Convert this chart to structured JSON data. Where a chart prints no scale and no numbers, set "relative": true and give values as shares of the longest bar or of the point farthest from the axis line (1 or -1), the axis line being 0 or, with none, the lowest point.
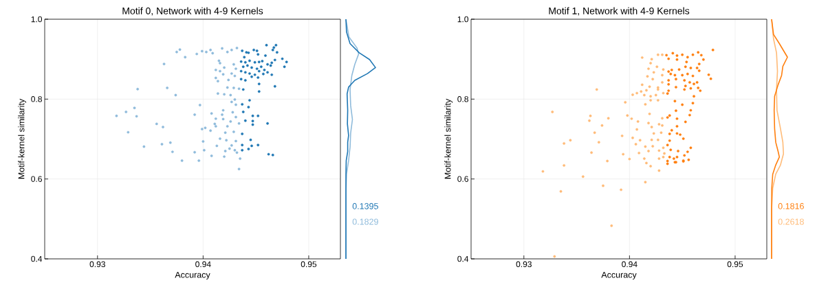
{
  "chart_data": [
    {
      "type": "scatter",
      "title": "Motif 0, Network with 4-9 Kernels",
      "xlabel": "Accuracy",
      "ylabel": "Motif-kernel similarity",
      "xlim": [
        0.925,
        0.953
      ],
      "xticks": [
        0.93,
        0.94,
        0.95
      ],
      "ylim": [
        0.4,
        1.0
      ],
      "yticks": [
        0.4,
        0.6,
        0.8,
        {
          "value": 1.0,
          "label": "1.0"
        }
      ],
      "grid": true,
      "series": [
        {
          "color": "#8fbbdb",
          "x": [
            0.9375,
            0.9378,
            0.9383,
            0.9363,
            0.9394,
            0.9399,
            0.9403,
            0.9407,
            0.9409,
            0.9418,
            0.9423,
            0.9427,
            0.9432,
            0.9415,
            0.9416,
            0.942,
            0.9429,
            0.9431,
            0.9412,
            0.9416,
            0.9419,
            0.9412,
            0.9414,
            0.9424,
            0.9427,
            0.943,
            0.9338,
            0.9366,
            0.9374,
            0.9423,
            0.9429,
            0.9434,
            0.9414,
            0.942,
            0.9426,
            0.943,
            0.9427,
            0.9431,
            0.9397,
            0.9335,
            0.9327,
            0.9318,
            0.9337,
            0.9392,
            0.9408,
            0.9419,
            0.9418,
            0.9428,
            0.9431,
            0.9412,
            0.9419,
            0.9426,
            0.9423,
            0.9434,
            0.9411,
            0.9412,
            0.9356,
            0.9362,
            0.9329,
            0.9399,
            0.9402,
            0.9407,
            0.9421,
            0.9429,
            0.9416,
            0.9422,
            0.9431,
            0.9369,
            0.9361,
            0.9344,
            0.94,
            0.9413,
            0.9427,
            0.9371,
            0.9392,
            0.9401,
            0.9421,
            0.9425,
            0.943,
            0.9432,
            0.9408,
            0.942,
            0.9435,
            0.938,
            0.9396,
            0.9434
          ],
          "values": [
            0.918,
            0.924,
            0.905,
            0.888,
            0.913,
            0.92,
            0.918,
            0.923,
            0.915,
            0.927,
            0.918,
            0.923,
            0.928,
            0.896,
            0.89,
            0.879,
            0.887,
            0.876,
            0.873,
            0.87,
            0.862,
            0.853,
            0.845,
            0.848,
            0.864,
            0.858,
            0.825,
            0.828,
            0.81,
            0.829,
            0.828,
            0.826,
            0.814,
            0.812,
            0.81,
            0.799,
            0.793,
            0.786,
            0.785,
            0.778,
            0.768,
            0.758,
            0.757,
            0.761,
            0.764,
            0.772,
            0.761,
            0.767,
            0.755,
            0.751,
            0.75,
            0.744,
            0.732,
            0.739,
            0.738,
            0.732,
            0.738,
            0.73,
            0.717,
            0.725,
            0.728,
            0.721,
            0.716,
            0.718,
            0.701,
            0.697,
            0.695,
            0.691,
            0.687,
            0.681,
            0.694,
            0.683,
            0.684,
            0.668,
            0.667,
            0.672,
            0.67,
            0.676,
            0.672,
            0.666,
            0.658,
            0.656,
            0.651,
            0.646,
            0.646,
            0.625
          ]
        },
        {
          "color": "#1f77b4",
          "x": [
            0.946,
            0.9469,
            0.9467,
            0.9466,
            0.947,
            0.9437,
            0.9441,
            0.9443,
            0.9448,
            0.9451,
            0.9452,
            0.9459,
            0.9439,
            0.9475,
            0.9479,
            0.9477,
            0.9468,
            0.9465,
            0.9436,
            0.944,
            0.9444,
            0.9449,
            0.9453,
            0.9456,
            0.9461,
            0.9464,
            0.9438,
            0.9442,
            0.9446,
            0.9451,
            0.9455,
            0.9458,
            0.9436,
            0.944,
            0.9444,
            0.9449,
            0.9453,
            0.9457,
            0.9465,
            0.9461,
            0.9436,
            0.944,
            0.9446,
            0.9452,
            0.9453,
            0.9468,
            0.9453,
            0.9438,
            0.9444,
            0.9437,
            0.9443,
            0.9438,
            0.9447,
            0.9452,
            0.944,
            0.9447,
            0.9447,
            0.9461,
            0.9437,
            0.9445,
            0.9437,
            0.9446,
            0.9452,
            0.9437,
            0.9443,
            0.9462,
            0.9466
          ],
          "values": [
            0.935,
            0.935,
            0.929,
            0.923,
            0.917,
            0.921,
            0.917,
            0.916,
            0.923,
            0.921,
            0.912,
            0.909,
            0.905,
            0.901,
            0.893,
            0.881,
            0.898,
            0.891,
            0.894,
            0.892,
            0.896,
            0.892,
            0.893,
            0.895,
            0.887,
            0.884,
            0.881,
            0.884,
            0.879,
            0.876,
            0.881,
            0.873,
            0.87,
            0.867,
            0.864,
            0.861,
            0.87,
            0.863,
            0.861,
            0.867,
            0.85,
            0.847,
            0.856,
            0.854,
            0.838,
            0.832,
            0.819,
            0.824,
            0.797,
            0.787,
            0.78,
            0.768,
            0.758,
            0.758,
            0.746,
            0.745,
            0.736,
            0.739,
            0.713,
            0.698,
            0.685,
            0.683,
            0.685,
            0.672,
            0.675,
            0.662,
            0.66
          ]
        }
      ]
    },
    {
      "type": "line",
      "orientation": "horizontal",
      "relative": true,
      "ylim": [
        0.4,
        1.0
      ],
      "tick_labels": false,
      "annotations": [
        "0.1395",
        "0.1829"
      ],
      "series": [
        {
          "color": "#1f77b4",
          "x": [
            0.4,
            0.554,
            0.612,
            0.646,
            0.669,
            0.692,
            0.709,
            0.738,
            0.772,
            0.813,
            0.83,
            0.847,
            0.864,
            0.879,
            0.899,
            0.916,
            0.939,
            0.968,
            1.0
          ],
          "values": [
            0,
            0,
            0,
            0.01,
            0.06,
            0.06,
            0.09,
            0.05,
            0.06,
            0.04,
            0.09,
            0.3,
            0.73,
            1.0,
            0.8,
            0.45,
            0.14,
            0.02,
            0
          ]
        },
        {
          "color": "#8fbbdb",
          "x": [
            0.4,
            0.566,
            0.612,
            0.646,
            0.68,
            0.715,
            0.749,
            0.784,
            0.824,
            0.859,
            0.887,
            0.913,
            0.928,
            0.956,
            1.0
          ],
          "values": [
            0,
            0,
            0.02,
            0.09,
            0.14,
            0.16,
            0.22,
            0.16,
            0.14,
            0.2,
            0.3,
            0.43,
            0.375,
            0.1,
            0
          ]
        }
      ]
    },
    {
      "type": "scatter",
      "title": "Motif 1, Network with 4-9 Kernels",
      "xlabel": "Accuracy",
      "ylabel": "Motif-kernel similarity",
      "xlim": [
        0.925,
        0.953
      ],
      "xticks": [
        0.93,
        0.94,
        0.95
      ],
      "ylim": [
        0.4,
        1.0
      ],
      "yticks": [
        0.4,
        0.6,
        0.8,
        {
          "value": 1.0,
          "label": "1.0"
        }
      ],
      "grid": true,
      "series": [
        {
          "color": "#ffbb78",
          "x": [
            0.9427,
            0.9431,
            0.9412,
            0.9421,
            0.942,
            0.9426,
            0.9432,
            0.9418,
            0.9423,
            0.9431,
            0.9417,
            0.9422,
            0.9431,
            0.9412,
            0.9419,
            0.9416,
            0.9427,
            0.9427,
            0.9403,
            0.9407,
            0.9411,
            0.9414,
            0.942,
            0.9425,
            0.9432,
            0.9369,
            0.9396,
            0.942,
            0.9415,
            0.9427,
            0.9327,
            0.9363,
            0.9362,
            0.938,
            0.9398,
            0.9402,
            0.9408,
            0.9419,
            0.9418,
            0.9431,
            0.9421,
            0.9428,
            0.9431,
            0.9374,
            0.9367,
            0.9407,
            0.9393,
            0.9403,
            0.9423,
            0.943,
            0.9421,
            0.9427,
            0.941,
            0.9371,
            0.9344,
            0.9338,
            0.9406,
            0.9415,
            0.9422,
            0.9432,
            0.9364,
            0.9394,
            0.9409,
            0.9418,
            0.9428,
            0.9433,
            0.9379,
            0.94,
            0.9414,
            0.9428,
            0.9432,
            0.9416,
            0.9318,
            0.9338,
            0.9356,
            0.9375,
            0.9335,
            0.9392,
            0.9415,
            0.9383,
            0.9329,
            0.9428,
            0.942
          ],
          "values": [
            0.911,
            0.911,
            0.904,
            0.9,
            0.89,
            0.881,
            0.874,
            0.876,
            0.867,
            0.86,
            0.857,
            0.85,
            0.842,
            0.836,
            0.831,
            0.822,
            0.824,
            0.829,
            0.811,
            0.815,
            0.819,
            0.81,
            0.807,
            0.81,
            0.815,
            0.824,
            0.792,
            0.797,
            0.787,
            0.797,
            0.768,
            0.758,
            0.746,
            0.752,
            0.759,
            0.751,
            0.744,
            0.763,
            0.74,
            0.752,
            0.73,
            0.737,
            0.734,
            0.734,
            0.716,
            0.724,
            0.708,
            0.703,
            0.714,
            0.716,
            0.698,
            0.698,
            0.697,
            0.692,
            0.697,
            0.689,
            0.687,
            0.681,
            0.682,
            0.678,
            0.666,
            0.662,
            0.665,
            0.67,
            0.671,
            0.664,
            0.645,
            0.65,
            0.651,
            0.651,
            0.655,
            0.64,
            0.619,
            0.634,
            0.606,
            0.583,
            0.569,
            0.573,
            0.592,
            0.483,
            0.406,
            0.621,
            0.632
          ]
        },
        {
          "color": "#ff7f0e",
          "x": [
            0.9435,
            0.9441,
            0.9445,
            0.945,
            0.9455,
            0.946,
            0.9465,
            0.9468,
            0.947,
            0.9479,
            0.9437,
            0.9445,
            0.9454,
            0.9466,
            0.9437,
            0.944,
            0.9447,
            0.9453,
            0.9458,
            0.9464,
            0.9439,
            0.9443,
            0.945,
            0.9455,
            0.946,
            0.9466,
            0.9475,
            0.9477,
            0.9437,
            0.9444,
            0.9452,
            0.9457,
            0.9464,
            0.9437,
            0.9444,
            0.9453,
            0.9461,
            0.9465,
            0.9436,
            0.9437,
            0.9452,
            0.9458,
            0.9467,
            0.9461,
            0.9443,
            0.945,
            0.946,
            0.9444,
            0.9458,
            0.9457,
            0.9436,
            0.9438,
            0.9445,
            0.9453,
            0.9445,
            0.944,
            0.9438,
            0.9445,
            0.9448,
            0.9451,
            0.9438,
            0.9436,
            0.9439,
            0.9446,
            0.9458,
            0.9455,
            0.9452,
            0.9438,
            0.9442,
            0.9445,
            0.9456,
            0.9436,
            0.9451,
            0.9443,
            0.9436,
            0.9444,
            0.9451
          ],
          "values": [
            0.91,
            0.915,
            0.909,
            0.911,
            0.905,
            0.911,
            0.917,
            0.91,
            0.899,
            0.923,
            0.901,
            0.899,
            0.893,
            0.888,
            0.869,
            0.873,
            0.874,
            0.881,
            0.878,
            0.878,
            0.863,
            0.86,
            0.86,
            0.863,
            0.858,
            0.871,
            0.861,
            0.851,
            0.847,
            0.85,
            0.847,
            0.842,
            0.842,
            0.837,
            0.83,
            0.833,
            0.838,
            0.828,
            0.814,
            0.821,
            0.824,
            0.827,
            0.821,
            0.807,
            0.795,
            0.786,
            0.79,
            0.771,
            0.772,
            0.76,
            0.754,
            0.759,
            0.751,
            0.743,
            0.732,
            0.722,
            0.713,
            0.714,
            0.711,
            0.701,
            0.696,
            0.685,
            0.673,
            0.67,
            0.678,
            0.668,
            0.659,
            0.655,
            0.651,
            0.655,
            0.648,
            0.645,
            0.644,
            0.642,
            0.638,
            0.642,
            0.646
          ]
        }
      ]
    },
    {
      "type": "line",
      "orientation": "horizontal",
      "relative": true,
      "ylim": [
        0.4,
        1.0
      ],
      "tick_labels": false,
      "annotations": [
        "0.1816",
        "0.2618"
      ],
      "series": [
        {
          "color": "#ff7f0e",
          "x": [
            0.4,
            0.525,
            0.577,
            0.612,
            0.635,
            0.655,
            0.669,
            0.692,
            0.726,
            0.772,
            0.807,
            0.836,
            0.859,
            0.882,
            0.905,
            0.939,
            0.962,
            1.0
          ],
          "values": [
            0,
            0,
            0.01,
            0.07,
            0.26,
            0.49,
            0.41,
            0.26,
            0.19,
            0.16,
            0.19,
            0.41,
            0.63,
            0.71,
            1.0,
            0.49,
            0.12,
            0
          ]
        },
        {
          "color": "#ffbb78",
          "x": [
            0.4,
            0.525,
            0.577,
            0.612,
            0.635,
            0.663,
            0.692,
            0.726,
            0.772,
            0.824,
            0.87,
            0.916,
            0.951,
            1.0
          ],
          "values": [
            0,
            0,
            0.07,
            0.26,
            0.56,
            0.75,
            0.71,
            0.56,
            0.34,
            0.31,
            0.37,
            0.31,
            0.12,
            0
          ]
        }
      ]
    }
  ]
}
